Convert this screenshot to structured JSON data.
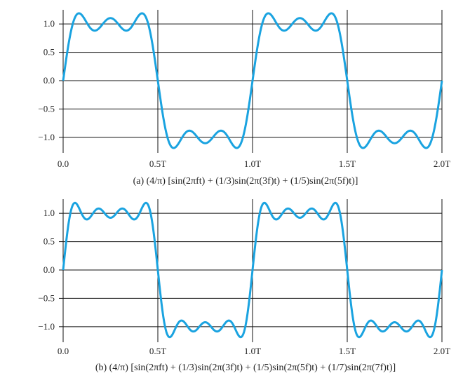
{
  "chart_data": [
    {
      "type": "line",
      "caption": "(a) (4/π) [sin(2πft) + (1/3)sin(2π(3f)t) + (1/5)sin(2π(5f)t)]",
      "harmonics": [
        1,
        3,
        5
      ],
      "x_ticks": [
        0.0,
        0.5,
        1.0,
        1.5,
        2.0
      ],
      "x_tick_labels": [
        "0.0",
        "0.5T",
        "1.0T",
        "1.5T",
        "2.0T"
      ],
      "y_ticks": [
        1.0,
        0.5,
        0.0,
        -0.5,
        -1.0
      ],
      "y_tick_labels": [
        "1.0",
        "0.5",
        "0.0",
        "−0.5",
        "−1.0"
      ],
      "xlim": [
        0,
        2
      ],
      "ylim": [
        -1.2,
        1.2
      ],
      "grid": true,
      "line_color": "#1aa3e0"
    },
    {
      "type": "line",
      "caption": "(b) (4/π) [sin(2πft) + (1/3)sin(2π(3f)t) + (1/5)sin(2π(5f)t) + (1/7)sin(2π(7f)t)]",
      "harmonics": [
        1,
        3,
        5,
        7
      ],
      "x_ticks": [
        0.0,
        0.5,
        1.0,
        1.5,
        2.0
      ],
      "x_tick_labels": [
        "0.0",
        "0.5T",
        "1.0T",
        "1.5T",
        "2.0T"
      ],
      "y_ticks": [
        1.0,
        0.5,
        0.0,
        -0.5,
        -1.0
      ],
      "y_tick_labels": [
        "1.0",
        "0.5",
        "0.0",
        "−0.5",
        "−1.0"
      ],
      "xlim": [
        0,
        2
      ],
      "ylim": [
        -1.2,
        1.2
      ],
      "grid": true,
      "line_color": "#1aa3e0"
    }
  ]
}
